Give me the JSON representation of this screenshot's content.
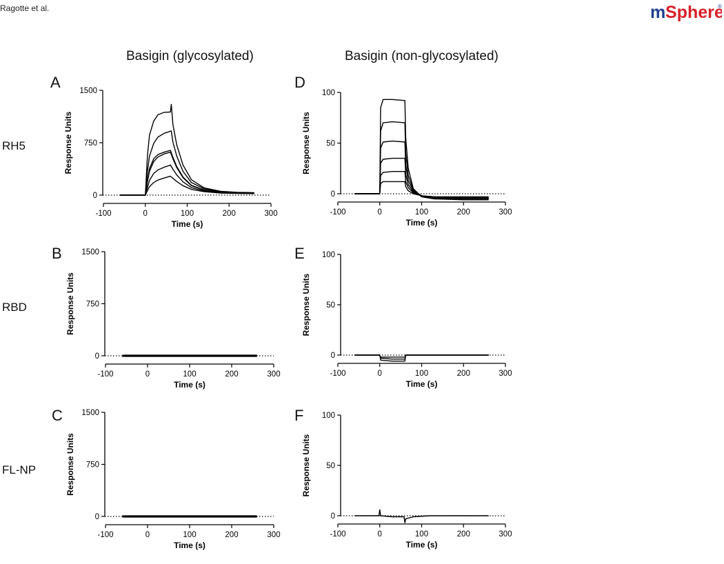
{
  "header": {
    "authors": "Ragotte et al.",
    "logo_text": "mSphere",
    "logo_mark": "®"
  },
  "columns": {
    "left": "Basigin (glycosylated)",
    "right": "Basigin (non-glycosylated)"
  },
  "rows": [
    "RH5",
    "RBD",
    "FL-NP"
  ],
  "colors": {
    "logo_blue": "#1f3f8f",
    "logo_red": "#d8202a",
    "trace": "#000000"
  },
  "chart_data": [
    {
      "id": "A",
      "letter": "A",
      "type": "line",
      "ligand": "RH5",
      "analyte": "Basigin (glycosylated)",
      "xlabel": "Time (s)",
      "ylabel": "Response Units",
      "xlim": [
        -100,
        300
      ],
      "ylim": [
        0,
        1500
      ],
      "xticks": [
        "-100",
        "0",
        "100",
        "200",
        "300"
      ],
      "yticks": [
        "0",
        "750",
        "1500"
      ],
      "baseline_dotted": true,
      "injection": {
        "start": 0,
        "end": 60
      },
      "series": [
        {
          "values": [
            [
              -60,
              0
            ],
            [
              0,
              0
            ],
            [
              5,
              560
            ],
            [
              10,
              860
            ],
            [
              20,
              1060
            ],
            [
              30,
              1150
            ],
            [
              45,
              1185
            ],
            [
              60,
              1190
            ],
            [
              62,
              1300
            ],
            [
              66,
              1010
            ],
            [
              75,
              720
            ],
            [
              90,
              430
            ],
            [
              110,
              220
            ],
            [
              140,
              105
            ],
            [
              180,
              55
            ],
            [
              220,
              40
            ],
            [
              260,
              35
            ]
          ]
        },
        {
          "values": [
            [
              -60,
              0
            ],
            [
              0,
              0
            ],
            [
              5,
              340
            ],
            [
              10,
              560
            ],
            [
              20,
              740
            ],
            [
              30,
              830
            ],
            [
              45,
              885
            ],
            [
              60,
              915
            ],
            [
              62,
              920
            ],
            [
              66,
              760
            ],
            [
              75,
              560
            ],
            [
              90,
              340
            ],
            [
              110,
              180
            ],
            [
              140,
              92
            ],
            [
              180,
              50
            ],
            [
              220,
              36
            ],
            [
              260,
              32
            ]
          ]
        },
        {
          "values": [
            [
              -60,
              0
            ],
            [
              0,
              0
            ],
            [
              5,
              210
            ],
            [
              10,
              380
            ],
            [
              20,
              520
            ],
            [
              30,
              580
            ],
            [
              45,
              615
            ],
            [
              60,
              640
            ],
            [
              66,
              540
            ],
            [
              75,
              410
            ],
            [
              90,
              260
            ],
            [
              110,
              140
            ],
            [
              140,
              75
            ],
            [
              180,
              42
            ],
            [
              220,
              32
            ],
            [
              260,
              30
            ]
          ]
        },
        {
          "values": [
            [
              -60,
              0
            ],
            [
              0,
              0
            ],
            [
              5,
              190
            ],
            [
              10,
              340
            ],
            [
              20,
              480
            ],
            [
              30,
              545
            ],
            [
              45,
              590
            ],
            [
              60,
              615
            ],
            [
              66,
              520
            ],
            [
              75,
              395
            ],
            [
              90,
              250
            ],
            [
              110,
              135
            ],
            [
              140,
              72
            ],
            [
              180,
              40
            ],
            [
              220,
              31
            ],
            [
              260,
              29
            ]
          ]
        },
        {
          "values": [
            [
              -60,
              0
            ],
            [
              0,
              0
            ],
            [
              5,
              110
            ],
            [
              10,
              210
            ],
            [
              20,
              310
            ],
            [
              30,
              360
            ],
            [
              45,
              400
            ],
            [
              60,
              430
            ],
            [
              66,
              370
            ],
            [
              75,
              290
            ],
            [
              90,
              190
            ],
            [
              110,
              108
            ],
            [
              140,
              60
            ],
            [
              180,
              36
            ],
            [
              220,
              28
            ],
            [
              260,
              26
            ]
          ]
        },
        {
          "values": [
            [
              -60,
              0
            ],
            [
              0,
              0
            ],
            [
              5,
              65
            ],
            [
              10,
              120
            ],
            [
              20,
              180
            ],
            [
              30,
              215
            ],
            [
              45,
              245
            ],
            [
              60,
              270
            ],
            [
              66,
              240
            ],
            [
              75,
              195
            ],
            [
              90,
              135
            ],
            [
              110,
              82
            ],
            [
              140,
              50
            ],
            [
              180,
              30
            ],
            [
              220,
              24
            ],
            [
              260,
              22
            ]
          ]
        }
      ]
    },
    {
      "id": "B",
      "letter": "B",
      "type": "line",
      "ligand": "RBD",
      "analyte": "Basigin (glycosylated)",
      "xlabel": "Time (s)",
      "ylabel": "Response Units",
      "xlim": [
        -100,
        300
      ],
      "ylim": [
        0,
        1500
      ],
      "xticks": [
        "-100",
        "0",
        "100",
        "200",
        "300"
      ],
      "yticks": [
        "0",
        "750",
        "1500"
      ],
      "baseline_dotted": true,
      "thick": true,
      "series": [
        {
          "values": [
            [
              -60,
              0
            ],
            [
              0,
              0
            ],
            [
              60,
              0
            ],
            [
              260,
              0
            ]
          ]
        }
      ]
    },
    {
      "id": "C",
      "letter": "C",
      "type": "line",
      "ligand": "FL-NP",
      "analyte": "Basigin (glycosylated)",
      "xlabel": "Time (s)",
      "ylabel": "Response Units",
      "xlim": [
        -100,
        300
      ],
      "ylim": [
        0,
        1500
      ],
      "xticks": [
        "-100",
        "0",
        "100",
        "200",
        "300"
      ],
      "yticks": [
        "0",
        "750",
        "1500"
      ],
      "baseline_dotted": true,
      "thick": true,
      "series": [
        {
          "values": [
            [
              -60,
              0
            ],
            [
              0,
              0
            ],
            [
              60,
              0
            ],
            [
              260,
              0
            ]
          ]
        }
      ]
    },
    {
      "id": "D",
      "letter": "D",
      "type": "line",
      "ligand": "RH5",
      "analyte": "Basigin (non-glycosylated)",
      "xlabel": "Time (s)",
      "ylabel": "Response Units",
      "xlim": [
        -100,
        300
      ],
      "ylim": [
        0,
        100
      ],
      "xticks": [
        "-100",
        "0",
        "100",
        "200",
        "300"
      ],
      "yticks": [
        "0",
        "50",
        "100"
      ],
      "baseline_dotted": true,
      "series": [
        {
          "values": [
            [
              -60,
              0
            ],
            [
              0,
              0
            ],
            [
              2,
              85
            ],
            [
              8,
              93
            ],
            [
              30,
              93
            ],
            [
              60,
              92
            ],
            [
              62,
              55
            ],
            [
              68,
              25
            ],
            [
              80,
              5
            ],
            [
              100,
              -3
            ],
            [
              130,
              -5
            ],
            [
              200,
              -6
            ],
            [
              260,
              -6
            ]
          ]
        },
        {
          "values": [
            [
              -60,
              0
            ],
            [
              0,
              0
            ],
            [
              2,
              62
            ],
            [
              8,
              70
            ],
            [
              30,
              71
            ],
            [
              60,
              70
            ],
            [
              62,
              40
            ],
            [
              68,
              18
            ],
            [
              80,
              4
            ],
            [
              100,
              -3
            ],
            [
              130,
              -5
            ],
            [
              200,
              -5
            ],
            [
              260,
              -5
            ]
          ]
        },
        {
          "values": [
            [
              -60,
              0
            ],
            [
              0,
              0
            ],
            [
              2,
              45
            ],
            [
              8,
              51
            ],
            [
              30,
              52
            ],
            [
              60,
              51
            ],
            [
              62,
              28
            ],
            [
              68,
              13
            ],
            [
              80,
              3
            ],
            [
              100,
              -2
            ],
            [
              130,
              -4
            ],
            [
              200,
              -5
            ],
            [
              260,
              -5
            ]
          ]
        },
        {
          "values": [
            [
              -60,
              0
            ],
            [
              0,
              0
            ],
            [
              2,
              30
            ],
            [
              8,
              34
            ],
            [
              30,
              35
            ],
            [
              60,
              35
            ],
            [
              62,
              19
            ],
            [
              68,
              9
            ],
            [
              80,
              2
            ],
            [
              100,
              -2
            ],
            [
              130,
              -4
            ],
            [
              200,
              -4
            ],
            [
              260,
              -4
            ]
          ]
        },
        {
          "values": [
            [
              -60,
              0
            ],
            [
              0,
              0
            ],
            [
              2,
              18
            ],
            [
              8,
              21
            ],
            [
              30,
              22
            ],
            [
              60,
              22
            ],
            [
              62,
              12
            ],
            [
              68,
              6
            ],
            [
              80,
              1
            ],
            [
              100,
              -2
            ],
            [
              130,
              -3
            ],
            [
              200,
              -4
            ],
            [
              260,
              -4
            ]
          ]
        },
        {
          "values": [
            [
              -60,
              0
            ],
            [
              0,
              0
            ],
            [
              2,
              10
            ],
            [
              8,
              12
            ],
            [
              30,
              12
            ],
            [
              60,
              12
            ],
            [
              62,
              7
            ],
            [
              68,
              3
            ],
            [
              80,
              0
            ],
            [
              100,
              -2
            ],
            [
              130,
              -3
            ],
            [
              200,
              -3
            ],
            [
              260,
              -3
            ]
          ]
        }
      ]
    },
    {
      "id": "E",
      "letter": "E",
      "type": "line",
      "ligand": "RBD",
      "analyte": "Basigin (non-glycosylated)",
      "xlabel": "Time (s)",
      "ylabel": "Response Units",
      "xlim": [
        -100,
        300
      ],
      "ylim": [
        0,
        100
      ],
      "xticks": [
        "-100",
        "0",
        "100",
        "200",
        "300"
      ],
      "yticks": [
        "0",
        "50",
        "100"
      ],
      "baseline_dotted": true,
      "series": [
        {
          "values": [
            [
              -60,
              0
            ],
            [
              0,
              0
            ],
            [
              2,
              -5
            ],
            [
              30,
              -6
            ],
            [
              60,
              -6
            ],
            [
              62,
              0
            ],
            [
              100,
              0
            ],
            [
              260,
              0
            ]
          ]
        },
        {
          "values": [
            [
              -60,
              0
            ],
            [
              0,
              0
            ],
            [
              2,
              -3
            ],
            [
              30,
              -4
            ],
            [
              60,
              -4
            ],
            [
              62,
              0
            ],
            [
              100,
              0
            ],
            [
              260,
              0
            ]
          ]
        },
        {
          "values": [
            [
              -60,
              0
            ],
            [
              0,
              0
            ],
            [
              2,
              -2
            ],
            [
              30,
              -2
            ],
            [
              60,
              -2
            ],
            [
              62,
              0
            ],
            [
              100,
              0
            ],
            [
              260,
              0
            ]
          ]
        }
      ]
    },
    {
      "id": "F",
      "letter": "F",
      "type": "line",
      "ligand": "FL-NP",
      "analyte": "Basigin (non-glycosylated)",
      "xlabel": "Time (s)",
      "ylabel": "Response Units",
      "xlim": [
        -100,
        300
      ],
      "ylim": [
        0,
        100
      ],
      "xticks": [
        "-100",
        "0",
        "100",
        "200",
        "300"
      ],
      "yticks": [
        "0",
        "50",
        "100"
      ],
      "baseline_dotted": true,
      "series": [
        {
          "values": [
            [
              -60,
              0
            ],
            [
              -2,
              0
            ],
            [
              0,
              6
            ],
            [
              2,
              0
            ],
            [
              30,
              -1
            ],
            [
              58,
              -1
            ],
            [
              60,
              -7
            ],
            [
              62,
              -3
            ],
            [
              80,
              -1
            ],
            [
              120,
              0
            ],
            [
              260,
              0
            ]
          ]
        }
      ]
    }
  ]
}
